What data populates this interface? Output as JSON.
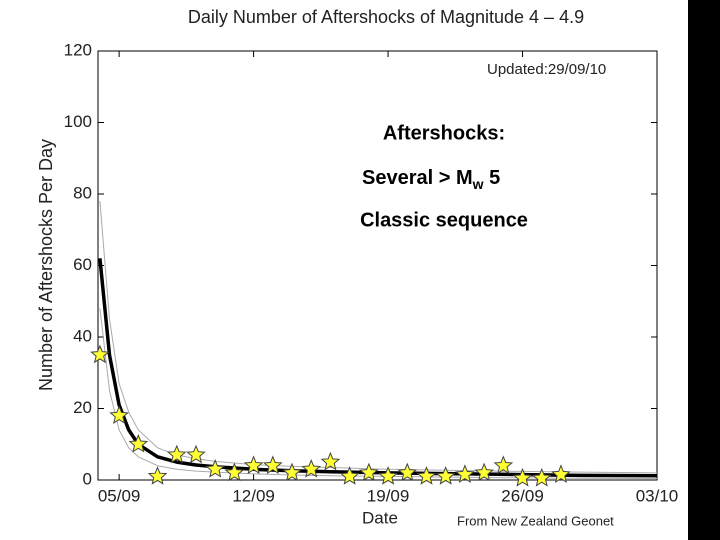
{
  "chart_data": {
    "type": "line",
    "title": "Daily Number of Aftershocks of Magnitude 4 – 4.9",
    "xlabel": "Date",
    "ylabel": "Number of Aftershocks Per Day",
    "xlim": [
      3.9,
      33
    ],
    "xticks": [
      {
        "value": 5,
        "label": "05/09"
      },
      {
        "value": 12,
        "label": "12/09"
      },
      {
        "value": 19,
        "label": "19/09"
      },
      {
        "value": 26,
        "label": "26/09"
      },
      {
        "value": 33,
        "label": "03/10"
      }
    ],
    "ylim": [
      0,
      120
    ],
    "yticks": [
      0,
      20,
      40,
      60,
      80,
      100,
      120
    ],
    "grid": false,
    "series": [
      {
        "color": "#aaaaaa",
        "marker": "none",
        "width": 1,
        "x": [
          4,
          4.5,
          5,
          5.5,
          6,
          7,
          8,
          9,
          10,
          12,
          14,
          16,
          19,
          22,
          26,
          29,
          33
        ],
        "values": [
          78,
          45,
          27,
          19,
          14,
          9,
          7,
          6,
          5.2,
          4.3,
          3.8,
          3.5,
          3,
          2.7,
          2.4,
          2.2,
          2
        ]
      },
      {
        "color": "#aaaaaa",
        "marker": "none",
        "width": 1,
        "x": [
          4,
          4.5,
          5,
          5.5,
          6,
          7,
          8,
          9,
          10,
          12,
          14,
          16,
          19,
          22,
          26,
          29,
          33
        ],
        "values": [
          48,
          25,
          14,
          9,
          6.5,
          4,
          3,
          2.5,
          2.2,
          1.7,
          1.4,
          1.2,
          1,
          0.8,
          0.6,
          0.5,
          0.4
        ]
      },
      {
        "color": "#000000",
        "marker": "none",
        "width": 3.5,
        "x": [
          4,
          4.5,
          5,
          5.5,
          6,
          7,
          8,
          9,
          10,
          12,
          14,
          16,
          19,
          22,
          26,
          29,
          33
        ],
        "values": [
          62,
          35,
          21,
          14,
          10,
          6.5,
          5,
          4.2,
          3.7,
          3,
          2.6,
          2.3,
          2,
          1.8,
          1.5,
          1.3,
          1.2
        ]
      },
      {
        "color": "#ffff33",
        "marker": "star",
        "width": 0,
        "x": [
          4,
          5,
          6,
          7,
          8,
          9,
          10,
          11,
          12,
          13,
          14,
          15,
          16,
          17,
          18,
          19,
          20,
          21,
          22,
          23,
          24,
          25,
          26,
          27,
          28
        ],
        "values": [
          35,
          18,
          10,
          1,
          7,
          7,
          3,
          2,
          4,
          4,
          2,
          3,
          5,
          1,
          2,
          1,
          2,
          1,
          1,
          1.5,
          2,
          4,
          0.5,
          0.5,
          1.5
        ]
      }
    ],
    "annotations": [
      "Updated:29/09/10",
      "Aftershocks:",
      "Several > M",
      "w",
      " 5",
      "Classic sequence",
      "From New Zealand Geonet"
    ]
  }
}
